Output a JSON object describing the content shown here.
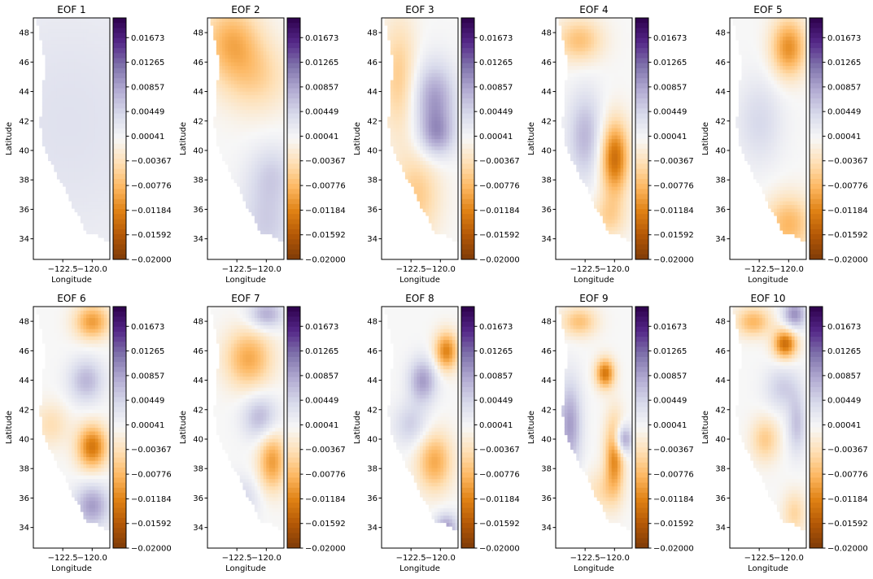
{
  "colors": {
    "cmap": [
      "#7f3b08",
      "#b35806",
      "#e08214",
      "#fdb863",
      "#fee0b6",
      "#f7f7f7",
      "#d8daeb",
      "#b2abd2",
      "#8073ac",
      "#542788",
      "#2d004b"
    ],
    "axes": "#000000",
    "background": "#ffffff"
  },
  "chart_data": {
    "type": "heatmap",
    "colormap": "PuOr",
    "value_range": [
      -0.02,
      0.02
    ],
    "xlabel": "Longitude",
    "ylabel": "Latitude",
    "xticks": [
      "−122.5",
      "−120.0"
    ],
    "xtick_values": [
      -122.5,
      -120.0
    ],
    "yticks": [
      "34",
      "36",
      "38",
      "40",
      "42",
      "44",
      "46",
      "48"
    ],
    "ytick_values": [
      34,
      36,
      38,
      40,
      42,
      44,
      46,
      48
    ],
    "xlim": [
      -125.0,
      -118.5
    ],
    "ylim": [
      32.6,
      49.0
    ],
    "colorbar_ticks": [
      "0.01673",
      "0.01265",
      "0.00857",
      "0.00449",
      "0.00041",
      "−0.00367",
      "−0.00776",
      "−0.01184",
      "−0.01592",
      "−0.02000"
    ],
    "colorbar_tick_values": [
      0.01673,
      0.01265,
      0.00857,
      0.00449,
      0.00041,
      -0.00367,
      -0.00776,
      -0.01184,
      -0.01592,
      -0.02
    ],
    "panels": [
      {
        "title": "EOF 1",
        "blobs": [
          [
            -122,
            42,
            10,
            10,
            0.003
          ]
        ]
      },
      {
        "title": "EOF 2",
        "blobs": [
          [
            -123,
            47.5,
            2.5,
            2.5,
            -0.008
          ],
          [
            -121,
            45,
            3,
            2.5,
            -0.005
          ],
          [
            -120,
            35,
            2.5,
            3,
            0.005
          ],
          [
            -119.5,
            38.5,
            2,
            2,
            0.004
          ]
        ]
      },
      {
        "title": "EOF 3",
        "blobs": [
          [
            -120.5,
            43.5,
            1.8,
            2.5,
            0.009
          ],
          [
            -120.3,
            41,
            1.5,
            1.5,
            0.007
          ],
          [
            -123.5,
            45,
            1.5,
            4,
            -0.006
          ],
          [
            -122,
            37,
            2,
            3,
            -0.006
          ]
        ]
      },
      {
        "title": "EOF 4",
        "blobs": [
          [
            -120,
            39.5,
            1.2,
            2.5,
            -0.014
          ],
          [
            -123,
            47.5,
            2,
            1.5,
            -0.007
          ],
          [
            -122.5,
            41,
            1.5,
            3,
            0.007
          ],
          [
            -120.5,
            35.5,
            1.5,
            1.5,
            -0.005
          ]
        ]
      },
      {
        "title": "EOF 5",
        "blobs": [
          [
            -120,
            47,
            1.5,
            2,
            -0.011
          ],
          [
            -120,
            35,
            2,
            2,
            -0.008
          ],
          [
            -122.5,
            42,
            2,
            3,
            0.004
          ]
        ]
      },
      {
        "title": "EOF 6",
        "blobs": [
          [
            -120,
            39.5,
            1.3,
            1.5,
            -0.013
          ],
          [
            -120,
            48,
            1.5,
            1.2,
            -0.01
          ],
          [
            -120.5,
            44,
            1.5,
            1.5,
            0.007
          ],
          [
            -120,
            35.5,
            1.5,
            1.5,
            0.009
          ],
          [
            -123.5,
            41,
            1.5,
            1.5,
            -0.004
          ]
        ]
      },
      {
        "title": "EOF 7",
        "blobs": [
          [
            -121.5,
            45.5,
            2,
            2,
            -0.009
          ],
          [
            -119.5,
            38.5,
            1.2,
            2,
            -0.01
          ],
          [
            -120.5,
            41.5,
            1.5,
            1.5,
            0.007
          ],
          [
            -120,
            48.5,
            1.5,
            1,
            0.008
          ],
          [
            -122,
            36,
            1.5,
            1.5,
            0.004
          ]
        ]
      },
      {
        "title": "EOF 8",
        "blobs": [
          [
            -119.5,
            46,
            1,
            1.3,
            -0.012
          ],
          [
            -120.5,
            38.5,
            1.5,
            2,
            -0.009
          ],
          [
            -121.5,
            44,
            1.2,
            1.5,
            0.009
          ],
          [
            -119.5,
            34,
            1,
            1,
            0.009
          ],
          [
            -122.5,
            41,
            1.5,
            1.5,
            0.005
          ]
        ]
      },
      {
        "title": "EOF 9",
        "blobs": [
          [
            -120.8,
            44.5,
            0.8,
            1,
            -0.013
          ],
          [
            -120,
            39,
            0.8,
            2.5,
            -0.012
          ],
          [
            -123.8,
            41,
            1,
            3,
            0.009
          ],
          [
            -119.3,
            40,
            0.8,
            1,
            0.011
          ],
          [
            -123,
            48,
            1.5,
            1,
            -0.007
          ],
          [
            -121,
            36.5,
            1.5,
            1.5,
            -0.004
          ]
        ]
      },
      {
        "title": "EOF 10",
        "blobs": [
          [
            -120.3,
            46.5,
            1,
            1,
            -0.014
          ],
          [
            -123,
            48,
            1.5,
            1,
            -0.008
          ],
          [
            -122,
            40,
            1.2,
            1.5,
            -0.006
          ],
          [
            -119.5,
            48.5,
            1,
            1,
            0.01
          ],
          [
            -120.5,
            43.5,
            1.5,
            1.5,
            0.005
          ],
          [
            -119.5,
            35,
            1,
            1.5,
            -0.005
          ],
          [
            -119.3,
            41,
            0.8,
            2,
            0.006
          ]
        ]
      }
    ]
  }
}
